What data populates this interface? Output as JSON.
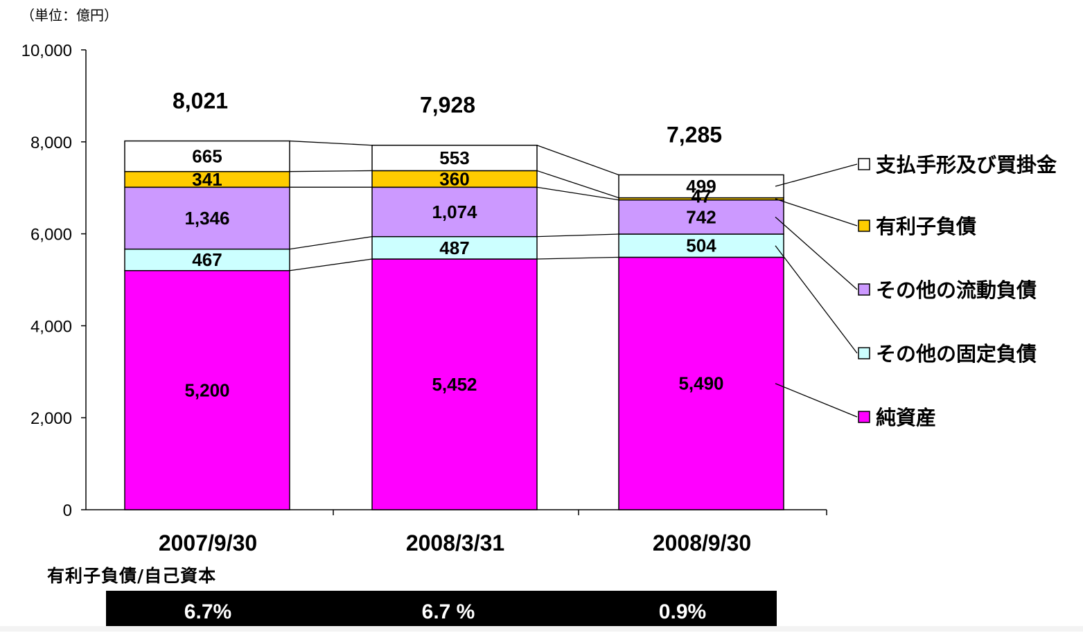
{
  "unit_label": "（単位：億円）",
  "ratio": {
    "title": "有利子負債/自己資本",
    "values": [
      "6.7%",
      "6.7 %",
      "0.9%"
    ]
  },
  "chart_data": {
    "type": "bar",
    "stacked": true,
    "title": "",
    "xlabel": "",
    "ylabel": "",
    "ylim": [
      0,
      10000
    ],
    "yticks": [
      0,
      2000,
      4000,
      6000,
      8000,
      10000
    ],
    "ytick_labels": [
      "0",
      "2,000",
      "4,000",
      "6,000",
      "8,000",
      "10,000"
    ],
    "categories": [
      "2007/9/30",
      "2008/3/31",
      "2008/9/30"
    ],
    "totals": [
      8021,
      7928,
      7285
    ],
    "total_labels": [
      "8,021",
      "7,928",
      "7,285"
    ],
    "legend_position": "right",
    "connector_lines": true,
    "series": [
      {
        "name": "純資産",
        "color": "#FF00FF",
        "values": [
          5200,
          5452,
          5490
        ],
        "labels": [
          "5,200",
          "5,452",
          "5,490"
        ]
      },
      {
        "name": "その他の固定負債",
        "color": "#CCFFFF",
        "values": [
          467,
          487,
          504
        ],
        "labels": [
          "467",
          "487",
          "504"
        ]
      },
      {
        "name": "その他の流動負債",
        "color": "#CC99FF",
        "values": [
          1346,
          1074,
          742
        ],
        "labels": [
          "1,346",
          "1,074",
          "742"
        ]
      },
      {
        "name": "有利子負債",
        "color": "#FFCC00",
        "values": [
          341,
          360,
          47
        ],
        "labels": [
          "341",
          "360",
          "47"
        ]
      },
      {
        "name": "支払手形及び買掛金",
        "color": "#FFFFFF",
        "values": [
          665,
          553,
          499
        ],
        "labels": [
          "665",
          "553",
          "499"
        ]
      }
    ]
  }
}
